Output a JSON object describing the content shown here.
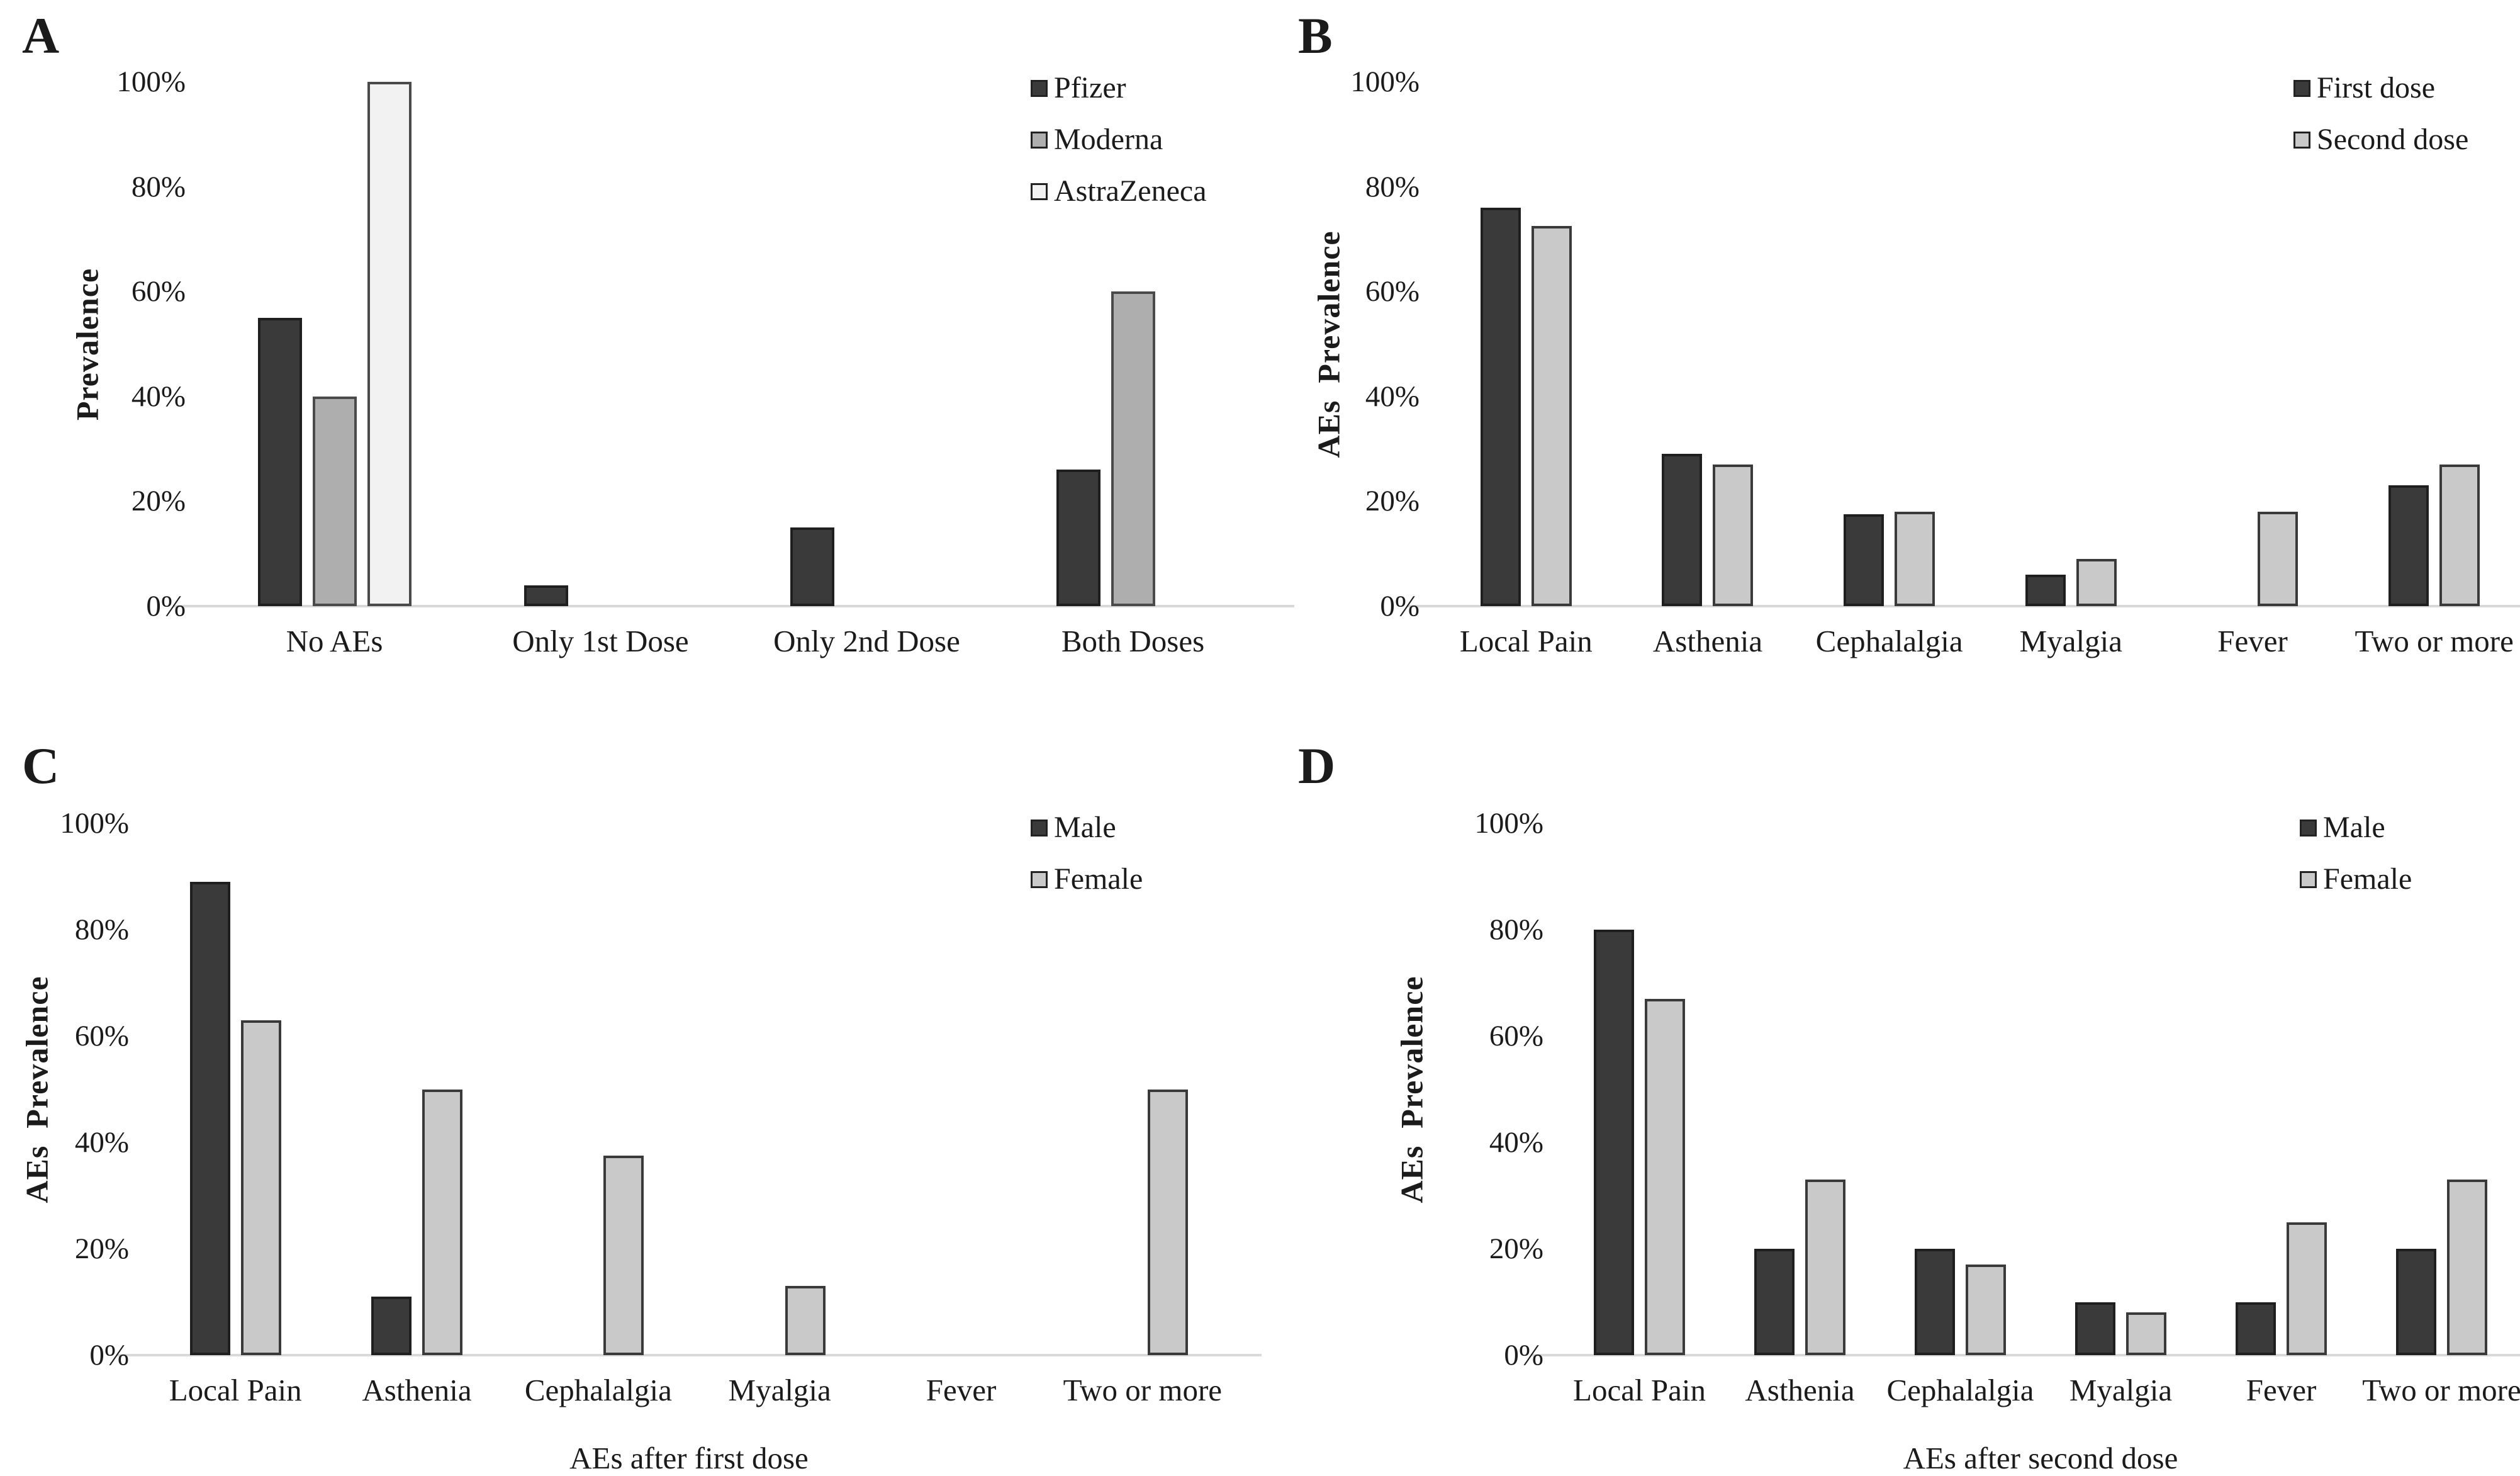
{
  "colors": {
    "dark_series": "#3a3a3a",
    "light_series": "#c9c9c9",
    "moderna_gray": "#aeaeae",
    "astrazeneca_white": "#f2f2f2",
    "axis_line": "#d9d9d9",
    "text": "#1b1b1b",
    "background": "#ffffff"
  },
  "chart_data": [
    {
      "panel_label": "A",
      "type": "bar",
      "title": "",
      "ylabel": "Prevalence",
      "xlabel": "",
      "ymax": 100,
      "ylim": [
        0,
        100
      ],
      "grid": false,
      "legend_position": "top-right",
      "yticks": [
        "0%",
        "20%",
        "40%",
        "60%",
        "80%",
        "100%"
      ],
      "categories": [
        "No AEs",
        "Only 1st Dose",
        "Only 2nd Dose",
        "Both Doses"
      ],
      "series": [
        {
          "name": "Pfizer",
          "fill": "#3a3a3a",
          "border": "#1f1f1f",
          "values": [
            55,
            4,
            15,
            26
          ]
        },
        {
          "name": "Moderna",
          "fill": "#aeaeae",
          "border": "#4a4a4a",
          "values": [
            40,
            0,
            0,
            60
          ]
        },
        {
          "name": "AstraZeneca",
          "fill": "#f2f2f2",
          "border": "#4a4a4a",
          "values": [
            100,
            0,
            0,
            0
          ]
        }
      ]
    },
    {
      "panel_label": "B",
      "type": "bar",
      "title": "",
      "ylabel": "AEs  Prevalence",
      "xlabel": "",
      "ymax": 100,
      "ylim": [
        0,
        100
      ],
      "grid": false,
      "legend_position": "top-right",
      "yticks": [
        "0%",
        "20%",
        "40%",
        "60%",
        "80%",
        "100%"
      ],
      "categories": [
        "Local Pain",
        "Asthenia",
        "Cephalalgia",
        "Myalgia",
        "Fever",
        "Two or more"
      ],
      "series": [
        {
          "name": "First dose",
          "fill": "#3a3a3a",
          "border": "#1f1f1f",
          "values": [
            76,
            29,
            17.5,
            6,
            0,
            23
          ]
        },
        {
          "name": "Second dose",
          "fill": "#c9c9c9",
          "border": "#3a3a3a",
          "values": [
            72.5,
            27,
            18,
            9,
            18,
            27
          ]
        }
      ]
    },
    {
      "panel_label": "C",
      "type": "bar",
      "title": "",
      "ylabel": "AEs  Prevalence",
      "xlabel": "AEs after first dose",
      "ymax": 100,
      "ylim": [
        0,
        100
      ],
      "grid": false,
      "legend_position": "top-right",
      "yticks": [
        "0%",
        "20%",
        "40%",
        "60%",
        "80%",
        "100%"
      ],
      "categories": [
        "Local Pain",
        "Asthenia",
        "Cephalalgia",
        "Myalgia",
        "Fever",
        "Two or more"
      ],
      "series": [
        {
          "name": "Male",
          "fill": "#3a3a3a",
          "border": "#1f1f1f",
          "values": [
            89,
            11,
            0,
            0,
            0,
            0
          ]
        },
        {
          "name": "Female",
          "fill": "#c9c9c9",
          "border": "#3a3a3a",
          "values": [
            63,
            50,
            37.5,
            13,
            0,
            50
          ]
        }
      ]
    },
    {
      "panel_label": "D",
      "type": "bar",
      "title": "",
      "ylabel": "AEs  Prevalence",
      "xlabel": "AEs after second dose",
      "ymax": 100,
      "ylim": [
        0,
        100
      ],
      "grid": false,
      "legend_position": "top-right",
      "yticks": [
        "0%",
        "20%",
        "40%",
        "60%",
        "80%",
        "100%"
      ],
      "categories": [
        "Local Pain",
        "Asthenia",
        "Cephalalgia",
        "Myalgia",
        "Fever",
        "Two or more"
      ],
      "series": [
        {
          "name": "Male",
          "fill": "#3a3a3a",
          "border": "#1f1f1f",
          "values": [
            80,
            20,
            20,
            10,
            10,
            20
          ]
        },
        {
          "name": "Female",
          "fill": "#c9c9c9",
          "border": "#3a3a3a",
          "values": [
            67,
            33,
            17,
            8,
            25,
            33
          ]
        }
      ]
    }
  ]
}
